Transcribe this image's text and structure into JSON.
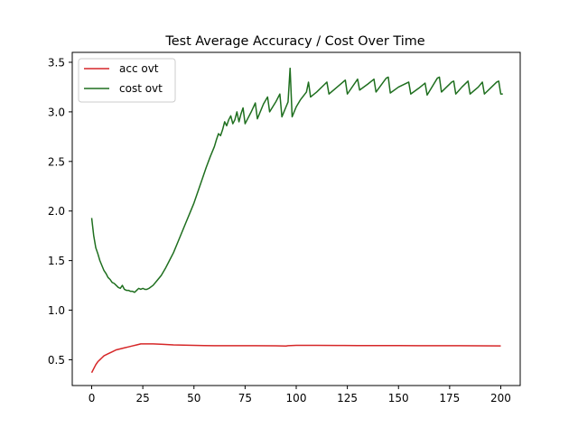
{
  "chart_data": {
    "type": "line",
    "title": "Test Average Accuracy / Cost Over Time",
    "xlabel": "",
    "ylabel": "",
    "xlim": [
      -9.5,
      209.5
    ],
    "ylim": [
      0.24,
      3.6
    ],
    "xticks": [
      0,
      25,
      50,
      75,
      100,
      125,
      150,
      175,
      200
    ],
    "xtick_labels": [
      "0",
      "25",
      "50",
      "75",
      "100",
      "125",
      "150",
      "175",
      "200"
    ],
    "yticks": [
      0.5,
      1.0,
      1.5,
      2.0,
      2.5,
      3.0,
      3.5
    ],
    "ytick_labels": [
      "0.5",
      "1.0",
      "1.5",
      "2.0",
      "2.5",
      "3.0",
      "3.5"
    ],
    "grid": false,
    "legend_position": "upper-left",
    "series": [
      {
        "name": "acc ovt",
        "color": "#d62728",
        "points": [
          [
            0,
            0.37
          ],
          [
            1,
            0.41
          ],
          [
            2,
            0.45
          ],
          [
            3,
            0.48
          ],
          [
            4,
            0.5
          ],
          [
            5,
            0.52
          ],
          [
            6,
            0.54
          ],
          [
            8,
            0.56
          ],
          [
            10,
            0.58
          ],
          [
            12,
            0.6
          ],
          [
            14,
            0.61
          ],
          [
            16,
            0.62
          ],
          [
            18,
            0.63
          ],
          [
            20,
            0.64
          ],
          [
            22,
            0.65
          ],
          [
            24,
            0.66
          ],
          [
            26,
            0.66
          ],
          [
            28,
            0.66
          ],
          [
            30,
            0.66
          ],
          [
            35,
            0.655
          ],
          [
            40,
            0.65
          ],
          [
            45,
            0.648
          ],
          [
            50,
            0.645
          ],
          [
            55,
            0.643
          ],
          [
            60,
            0.642
          ],
          [
            70,
            0.642
          ],
          [
            80,
            0.642
          ],
          [
            90,
            0.641
          ],
          [
            95,
            0.638
          ],
          [
            96,
            0.642
          ],
          [
            100,
            0.645
          ],
          [
            110,
            0.645
          ],
          [
            120,
            0.644
          ],
          [
            130,
            0.643
          ],
          [
            140,
            0.643
          ],
          [
            150,
            0.643
          ],
          [
            160,
            0.642
          ],
          [
            170,
            0.642
          ],
          [
            180,
            0.642
          ],
          [
            190,
            0.641
          ],
          [
            200,
            0.64
          ]
        ]
      },
      {
        "name": "cost ovt",
        "color": "#1f6f1f",
        "points": [
          [
            0,
            1.93
          ],
          [
            1,
            1.75
          ],
          [
            2,
            1.63
          ],
          [
            3,
            1.57
          ],
          [
            4,
            1.5
          ],
          [
            5,
            1.45
          ],
          [
            6,
            1.4
          ],
          [
            7,
            1.37
          ],
          [
            8,
            1.33
          ],
          [
            9,
            1.31
          ],
          [
            10,
            1.28
          ],
          [
            11,
            1.27
          ],
          [
            12,
            1.25
          ],
          [
            13,
            1.23
          ],
          [
            14,
            1.22
          ],
          [
            15,
            1.25
          ],
          [
            16,
            1.21
          ],
          [
            17,
            1.2
          ],
          [
            18,
            1.2
          ],
          [
            19,
            1.19
          ],
          [
            20,
            1.19
          ],
          [
            21,
            1.18
          ],
          [
            22,
            1.2
          ],
          [
            23,
            1.22
          ],
          [
            24,
            1.21
          ],
          [
            25,
            1.22
          ],
          [
            26,
            1.21
          ],
          [
            27,
            1.21
          ],
          [
            28,
            1.22
          ],
          [
            30,
            1.25
          ],
          [
            32,
            1.3
          ],
          [
            34,
            1.35
          ],
          [
            36,
            1.42
          ],
          [
            38,
            1.5
          ],
          [
            40,
            1.58
          ],
          [
            42,
            1.68
          ],
          [
            44,
            1.78
          ],
          [
            46,
            1.88
          ],
          [
            48,
            1.98
          ],
          [
            50,
            2.08
          ],
          [
            52,
            2.2
          ],
          [
            54,
            2.32
          ],
          [
            56,
            2.44
          ],
          [
            58,
            2.55
          ],
          [
            60,
            2.65
          ],
          [
            61,
            2.72
          ],
          [
            62,
            2.78
          ],
          [
            63,
            2.76
          ],
          [
            64,
            2.82
          ],
          [
            65,
            2.9
          ],
          [
            66,
            2.86
          ],
          [
            67,
            2.92
          ],
          [
            68,
            2.96
          ],
          [
            69,
            2.88
          ],
          [
            70,
            2.92
          ],
          [
            71,
            3.0
          ],
          [
            72,
            2.9
          ],
          [
            73,
            2.98
          ],
          [
            74,
            3.04
          ],
          [
            75,
            2.88
          ],
          [
            78,
            3.0
          ],
          [
            80,
            3.09
          ],
          [
            81,
            2.93
          ],
          [
            84,
            3.08
          ],
          [
            86,
            3.15
          ],
          [
            87,
            3.0
          ],
          [
            90,
            3.1
          ],
          [
            92,
            3.18
          ],
          [
            93,
            2.95
          ],
          [
            95,
            3.05
          ],
          [
            96,
            3.1
          ],
          [
            97,
            3.44
          ],
          [
            98,
            2.95
          ],
          [
            100,
            3.05
          ],
          [
            102,
            3.12
          ],
          [
            105,
            3.2
          ],
          [
            106,
            3.3
          ],
          [
            107,
            3.15
          ],
          [
            110,
            3.2
          ],
          [
            114,
            3.28
          ],
          [
            115,
            3.3
          ],
          [
            116,
            3.18
          ],
          [
            120,
            3.25
          ],
          [
            124,
            3.32
          ],
          [
            125,
            3.18
          ],
          [
            130,
            3.33
          ],
          [
            131,
            3.22
          ],
          [
            135,
            3.28
          ],
          [
            138,
            3.33
          ],
          [
            139,
            3.2
          ],
          [
            144,
            3.34
          ],
          [
            145,
            3.35
          ],
          [
            146,
            3.19
          ],
          [
            150,
            3.25
          ],
          [
            155,
            3.3
          ],
          [
            156,
            3.18
          ],
          [
            160,
            3.24
          ],
          [
            163,
            3.29
          ],
          [
            164,
            3.17
          ],
          [
            169,
            3.34
          ],
          [
            170,
            3.35
          ],
          [
            171,
            3.2
          ],
          [
            176,
            3.3
          ],
          [
            177,
            3.31
          ],
          [
            178,
            3.18
          ],
          [
            181,
            3.25
          ],
          [
            184,
            3.31
          ],
          [
            185,
            3.18
          ],
          [
            189,
            3.25
          ],
          [
            191,
            3.3
          ],
          [
            192,
            3.18
          ],
          [
            196,
            3.26
          ],
          [
            198,
            3.3
          ],
          [
            199,
            3.31
          ],
          [
            200,
            3.18
          ],
          [
            201,
            3.18
          ]
        ]
      }
    ]
  }
}
